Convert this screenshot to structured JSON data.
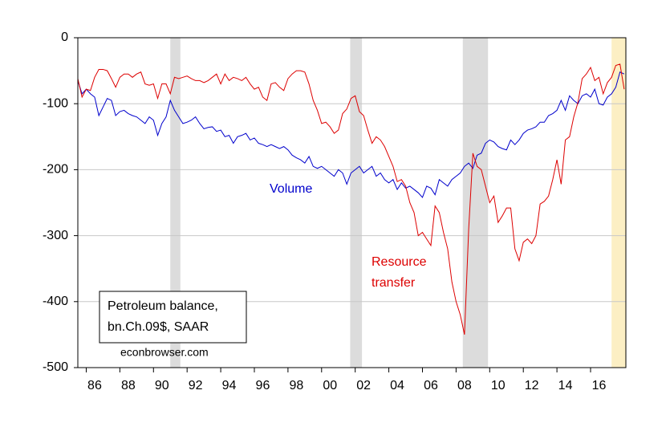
{
  "chart_data": {
    "type": "line",
    "annotations": {
      "volume": "Volume",
      "resource_1": "Resource",
      "resource_2": "transfer",
      "box_1": "Petroleum balance,",
      "box_2": "bn.Ch.09$, SAAR",
      "source": "econbrowser.com"
    },
    "x": [
      1985,
      1985.25,
      1985.5,
      1985.75,
      1986,
      1986.25,
      1986.5,
      1986.75,
      1987,
      1987.25,
      1987.5,
      1987.75,
      1988,
      1988.25,
      1988.5,
      1988.75,
      1989,
      1989.25,
      1989.5,
      1989.75,
      1990,
      1990.25,
      1990.5,
      1990.75,
      1991,
      1991.25,
      1991.5,
      1991.75,
      1992,
      1992.25,
      1992.5,
      1992.75,
      1993,
      1993.25,
      1993.5,
      1993.75,
      1994,
      1994.25,
      1994.5,
      1994.75,
      1995,
      1995.25,
      1995.5,
      1995.75,
      1996,
      1996.25,
      1996.5,
      1996.75,
      1997,
      1997.25,
      1997.5,
      1997.75,
      1998,
      1998.25,
      1998.5,
      1998.75,
      1999,
      1999.25,
      1999.5,
      1999.75,
      2000,
      2000.25,
      2000.5,
      2000.75,
      2001,
      2001.25,
      2001.5,
      2001.75,
      2002,
      2002.25,
      2002.5,
      2002.75,
      2003,
      2003.25,
      2003.5,
      2003.75,
      2004,
      2004.25,
      2004.5,
      2004.75,
      2005,
      2005.25,
      2005.5,
      2005.75,
      2006,
      2006.25,
      2006.5,
      2006.75,
      2007,
      2007.25,
      2007.5,
      2007.75,
      2008,
      2008.25,
      2008.5,
      2008.75,
      2009,
      2009.25,
      2009.5,
      2009.75,
      2010,
      2010.25,
      2010.5,
      2010.75,
      2011,
      2011.25,
      2011.5,
      2011.75,
      2012,
      2012.25,
      2012.5,
      2012.75,
      2013,
      2013.25,
      2013.5,
      2013.75,
      2014,
      2014.25,
      2014.5,
      2014.75,
      2015,
      2015.25,
      2015.5,
      2015.75,
      2016,
      2016.25,
      2016.5,
      2016.75,
      2017,
      2017.25,
      2017.5
    ],
    "series": [
      {
        "name": "Volume",
        "color": "#0000cc",
        "values": [
          -65,
          -85,
          -78,
          -85,
          -90,
          -118,
          -105,
          -92,
          -95,
          -118,
          -112,
          -110,
          -115,
          -118,
          -120,
          -125,
          -130,
          -120,
          -125,
          -148,
          -130,
          -120,
          -95,
          -110,
          -120,
          -130,
          -128,
          -125,
          -120,
          -130,
          -138,
          -136,
          -135,
          -142,
          -140,
          -150,
          -148,
          -160,
          -150,
          -148,
          -145,
          -155,
          -152,
          -160,
          -162,
          -165,
          -162,
          -165,
          -168,
          -165,
          -170,
          -178,
          -182,
          -185,
          -190,
          -180,
          -195,
          -198,
          -195,
          -200,
          -205,
          -210,
          -200,
          -205,
          -222,
          -205,
          -200,
          -195,
          -205,
          -200,
          -195,
          -210,
          -205,
          -215,
          -220,
          -215,
          -230,
          -220,
          -228,
          -225,
          -230,
          -235,
          -242,
          -225,
          -228,
          -238,
          -215,
          -220,
          -225,
          -215,
          -210,
          -205,
          -195,
          -190,
          -198,
          -178,
          -175,
          -160,
          -155,
          -158,
          -165,
          -168,
          -170,
          -155,
          -162,
          -155,
          -145,
          -140,
          -138,
          -135,
          -128,
          -128,
          -118,
          -115,
          -110,
          -95,
          -110,
          -88,
          -95,
          -100,
          -88,
          -85,
          -90,
          -78,
          -100,
          -102,
          -90,
          -85,
          -75,
          -52,
          -55
        ]
      },
      {
        "name": "Resource transfer",
        "color": "#dd0000",
        "values": [
          -62,
          -90,
          -78,
          -80,
          -60,
          -48,
          -48,
          -50,
          -62,
          -75,
          -60,
          -55,
          -55,
          -60,
          -55,
          -52,
          -70,
          -72,
          -70,
          -92,
          -70,
          -70,
          -85,
          -60,
          -62,
          -60,
          -58,
          -62,
          -65,
          -65,
          -68,
          -65,
          -60,
          -55,
          -70,
          -55,
          -65,
          -60,
          -62,
          -65,
          -60,
          -70,
          -78,
          -75,
          -90,
          -95,
          -70,
          -68,
          -75,
          -80,
          -62,
          -55,
          -50,
          -50,
          -52,
          -70,
          -95,
          -110,
          -130,
          -128,
          -135,
          -145,
          -140,
          -115,
          -108,
          -92,
          -88,
          -112,
          -118,
          -140,
          -160,
          -150,
          -155,
          -165,
          -180,
          -195,
          -218,
          -215,
          -225,
          -250,
          -265,
          -300,
          -295,
          -305,
          -315,
          -255,
          -265,
          -295,
          -320,
          -370,
          -400,
          -420,
          -450,
          -290,
          -175,
          -195,
          -200,
          -225,
          -250,
          -240,
          -280,
          -270,
          -258,
          -258,
          -320,
          -338,
          -310,
          -305,
          -312,
          -300,
          -252,
          -248,
          -240,
          -215,
          -185,
          -222,
          -155,
          -150,
          -120,
          -98,
          -62,
          -55,
          -45,
          -65,
          -60,
          -85,
          -68,
          -60,
          -42,
          -40,
          -78
        ]
      }
    ],
    "shaded_regions": [
      {
        "start": 1990.5,
        "end": 1991.1,
        "color": "#dcdcdc"
      },
      {
        "start": 2001.2,
        "end": 2001.9,
        "color": "#dcdcdc"
      },
      {
        "start": 2007.9,
        "end": 2009.4,
        "color": "#dcdcdc"
      },
      {
        "start": 2016.75,
        "end": 2017.6,
        "color": "#fcefc4"
      }
    ],
    "xlim": [
      1985,
      2017.6
    ],
    "ylim": [
      -500,
      0
    ],
    "yticks": [
      -500,
      -400,
      -300,
      -200,
      -100,
      0
    ],
    "xticks": [
      {
        "value": 1986,
        "label": "86"
      },
      {
        "value": 1988,
        "label": "88"
      },
      {
        "value": 1990,
        "label": "90"
      },
      {
        "value": 1992,
        "label": "92"
      },
      {
        "value": 1994,
        "label": "94"
      },
      {
        "value": 1996,
        "label": "96"
      },
      {
        "value": 1998,
        "label": "98"
      },
      {
        "value": 2000,
        "label": "00"
      },
      {
        "value": 2002,
        "label": "02"
      },
      {
        "value": 2004,
        "label": "04"
      },
      {
        "value": 2006,
        "label": "06"
      },
      {
        "value": 2008,
        "label": "08"
      },
      {
        "value": 2010,
        "label": "10"
      },
      {
        "value": 2012,
        "label": "12"
      },
      {
        "value": 2014,
        "label": "14"
      },
      {
        "value": 2016,
        "label": "16"
      }
    ],
    "grid": true
  }
}
